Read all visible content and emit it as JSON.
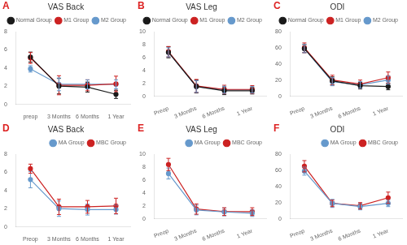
{
  "chart_data": [
    {
      "type": "line",
      "title": "VAS Back",
      "annotations": [
        {
          "text": "A",
          "color": "#DD2222"
        }
      ],
      "categories": [
        "preop",
        "3 Months",
        "6 Months",
        "1 Year"
      ],
      "series": [
        {
          "name": "Normal Group",
          "color": "#1a1a1a",
          "values": [
            5.2,
            2.0,
            1.9,
            1.1
          ],
          "errors": [
            0.55,
            0.85,
            0.55,
            0.45
          ]
        },
        {
          "name": "M1 Group",
          "color": "#CC2222",
          "values": [
            5.1,
            2.1,
            2.1,
            2.25
          ],
          "errors": [
            0.6,
            1.05,
            0.6,
            0.85
          ]
        },
        {
          "name": "M2 Group",
          "color": "#6699CC",
          "values": [
            3.9,
            2.2,
            2.2,
            2.2
          ],
          "errors": [
            0.35,
            0.7,
            0.5,
            0.5
          ]
        }
      ],
      "ylim": [
        0,
        8
      ],
      "yticks": [
        0,
        2,
        4,
        6,
        8
      ],
      "grid": false,
      "legend": "upper right",
      "marker": "circle",
      "line_style": "solid"
    },
    {
      "type": "line",
      "title": "VAS Leg",
      "annotations": [
        {
          "text": "B",
          "color": "#DD2222"
        }
      ],
      "categories": [
        "Preop",
        "3 Months",
        "6 Months",
        "1 Year"
      ],
      "series": [
        {
          "name": "Normal Group",
          "color": "#1a1a1a",
          "values": [
            6.8,
            1.5,
            0.85,
            0.85
          ],
          "errors": [
            0.85,
            1.0,
            0.6,
            0.5
          ]
        },
        {
          "name": "M1 Group",
          "color": "#CC2222",
          "values": [
            6.9,
            1.6,
            1.05,
            1.05
          ],
          "errors": [
            0.8,
            1.0,
            0.65,
            0.6
          ]
        },
        {
          "name": "M2 Group",
          "color": "#6699CC",
          "values": [
            6.8,
            1.5,
            1.0,
            1.0
          ],
          "errors": [
            0.7,
            0.9,
            0.55,
            0.5
          ]
        }
      ],
      "ylim": [
        0,
        10
      ],
      "yticks": [
        0,
        2,
        4,
        6,
        8,
        10
      ],
      "grid": false,
      "legend": "upper right",
      "marker": "circle",
      "line_style": "solid"
    },
    {
      "type": "line",
      "title": "ODI",
      "annotations": [
        {
          "text": "C",
          "color": "#DD2222"
        }
      ],
      "categories": [
        "Preop",
        "3 Months",
        "6 Months",
        "1 Year"
      ],
      "series": [
        {
          "name": "Normal Group",
          "color": "#1a1a1a",
          "values": [
            59,
            19,
            13,
            12
          ],
          "errors": [
            5,
            5,
            4,
            4
          ]
        },
        {
          "name": "M1 Group",
          "color": "#CC2222",
          "values": [
            60,
            20,
            15,
            23
          ],
          "errors": [
            6,
            6,
            5,
            7
          ]
        },
        {
          "name": "M2 Group",
          "color": "#6699CC",
          "values": [
            59,
            18,
            14,
            20
          ],
          "errors": [
            5,
            5,
            4,
            5
          ]
        }
      ],
      "ylim": [
        0,
        80
      ],
      "yticks": [
        0,
        20,
        40,
        60,
        80
      ],
      "grid": false,
      "legend": "upper right",
      "marker": "circle",
      "line_style": "solid"
    },
    {
      "type": "line",
      "title": "VAS Back",
      "annotations": [
        {
          "text": "D",
          "color": "#DD2222"
        }
      ],
      "categories": [
        "Preop",
        "3 Months",
        "6 Months",
        "1 Year"
      ],
      "series": [
        {
          "name": "MA Group",
          "color": "#6699CC",
          "values": [
            5.2,
            2.0,
            1.9,
            1.9
          ],
          "errors": [
            0.9,
            0.85,
            0.6,
            0.5
          ]
        },
        {
          "name": "MBC Group",
          "color": "#CC2222",
          "values": [
            6.4,
            2.2,
            2.2,
            2.3
          ],
          "errors": [
            0.5,
            0.85,
            0.7,
            0.85
          ]
        }
      ],
      "ylim": [
        0,
        8
      ],
      "yticks": [
        0,
        2,
        4,
        6,
        8
      ],
      "grid": false,
      "legend": "upper right",
      "marker": "circle",
      "line_style": "solid"
    },
    {
      "type": "line",
      "title": "VAS Leg",
      "annotations": [
        {
          "text": "E",
          "color": "#DD2222"
        }
      ],
      "categories": [
        "Preop",
        "3 Months",
        "6 Months",
        "1 Year"
      ],
      "series": [
        {
          "name": "MA Group",
          "color": "#6699CC",
          "values": [
            7.0,
            1.35,
            1.05,
            0.85
          ],
          "errors": [
            0.85,
            0.75,
            0.6,
            0.5
          ]
        },
        {
          "name": "MBC Group",
          "color": "#CC2222",
          "values": [
            8.4,
            1.5,
            1.1,
            1.1
          ],
          "errors": [
            0.95,
            0.8,
            0.6,
            0.6
          ]
        }
      ],
      "ylim": [
        0,
        10
      ],
      "yticks": [
        0,
        2,
        4,
        6,
        8,
        10
      ],
      "grid": false,
      "legend": "upper right",
      "marker": "circle",
      "line_style": "solid"
    },
    {
      "type": "line",
      "title": "ODI",
      "annotations": [
        {
          "text": "F",
          "color": "#DD2222"
        }
      ],
      "categories": [
        "Preop",
        "3 Months",
        "6 Months",
        "1 Year"
      ],
      "series": [
        {
          "name": "MA Group",
          "color": "#6699CC",
          "values": [
            59,
            19,
            15,
            19
          ],
          "errors": [
            5,
            5,
            4,
            4
          ]
        },
        {
          "name": "MBC Group",
          "color": "#CC2222",
          "values": [
            65,
            19,
            16,
            26
          ],
          "errors": [
            7,
            4,
            4,
            7
          ]
        }
      ],
      "ylim": [
        0,
        80
      ],
      "yticks": [
        0,
        20,
        40,
        60,
        80
      ],
      "grid": false,
      "legend": "upper right",
      "marker": "circle",
      "line_style": "solid"
    }
  ]
}
